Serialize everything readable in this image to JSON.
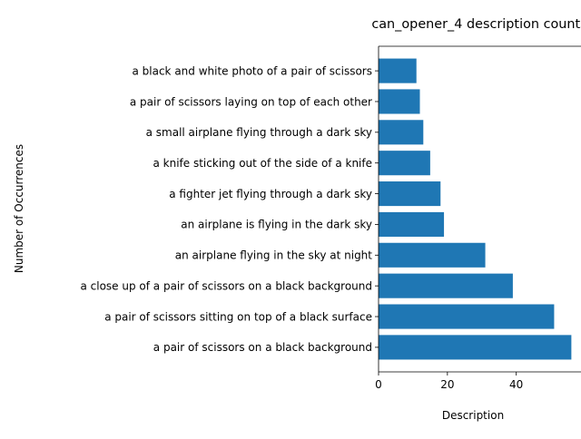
{
  "chart_data": {
    "type": "bar",
    "orientation": "horizontal",
    "title": "can_opener_4 description counts",
    "xlabel": "Description",
    "ylabel": "Number of Occurrences",
    "xlim": [
      0,
      58.8
    ],
    "xticks": [
      0,
      20,
      40
    ],
    "grid": false,
    "bar_color": "#1f77b4",
    "categories": [
      "a pair of scissors on a black background",
      "a pair of scissors sitting on top of a black surface",
      "a close up of a pair of scissors on a black background",
      "an airplane flying in the sky at night",
      "an airplane is flying in the dark sky",
      "a fighter jet flying through a dark sky",
      "a knife sticking out of the side of a knife",
      "a small airplane flying through a dark sky",
      "a pair of scissors laying on top of each other",
      "a black and white photo of a pair of scissors"
    ],
    "values": [
      56,
      51,
      39,
      31,
      19,
      18,
      15,
      13,
      12,
      11
    ]
  }
}
